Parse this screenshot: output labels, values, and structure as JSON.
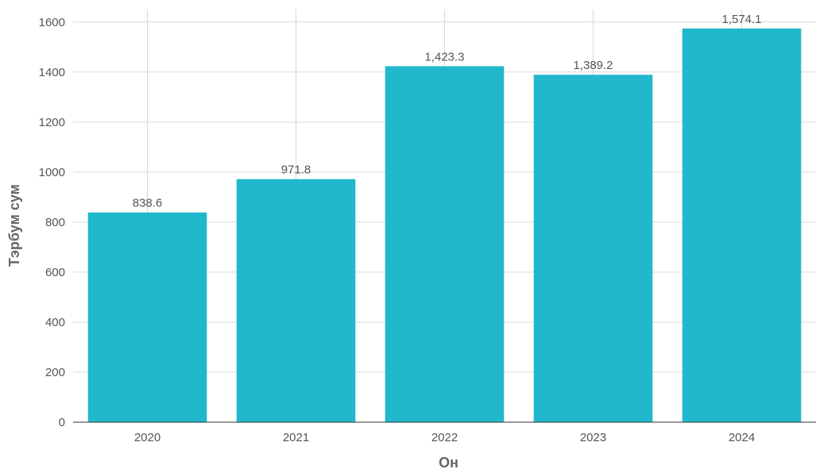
{
  "chart_data": {
    "type": "bar",
    "categories": [
      "2020",
      "2021",
      "2022",
      "2023",
      "2024"
    ],
    "values": [
      838.6,
      971.8,
      1423.3,
      1389.2,
      1574.1
    ],
    "data_labels": [
      "838.6",
      "971.8",
      "1,423.3",
      "1,389.2",
      "1,574.1"
    ],
    "title": "",
    "xlabel": "Он",
    "ylabel": "Тэрбум сум",
    "ylim": [
      0,
      1650
    ],
    "yticks": [
      0,
      200,
      400,
      600,
      800,
      1000,
      1200,
      1400,
      1600
    ],
    "grid": true,
    "bar_color": "#21b8cd"
  }
}
